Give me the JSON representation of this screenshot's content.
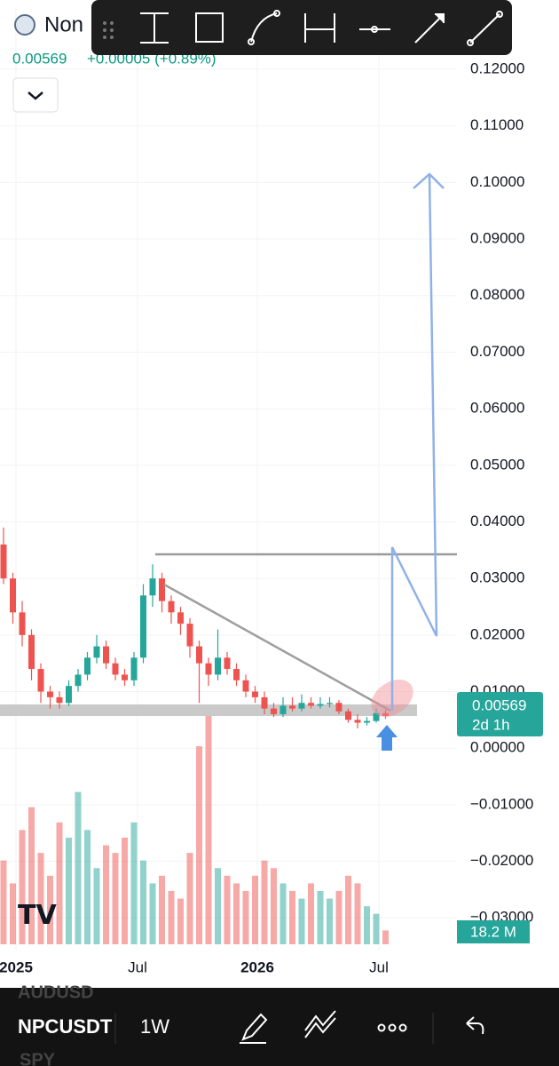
{
  "header": {
    "symbol": "Non",
    "price": "0.00569",
    "change": "+0.00005 (+0.89%)"
  },
  "chart": {
    "type": "candlestick",
    "yticks": [
      {
        "value": 0.12,
        "label": "0.12000"
      },
      {
        "value": 0.11,
        "label": "0.11000"
      },
      {
        "value": 0.1,
        "label": "0.10000"
      },
      {
        "value": 0.09,
        "label": "0.09000"
      },
      {
        "value": 0.08,
        "label": "0.08000"
      },
      {
        "value": 0.07,
        "label": "0.07000"
      },
      {
        "value": 0.06,
        "label": "0.06000"
      },
      {
        "value": 0.05,
        "label": "0.05000"
      },
      {
        "value": 0.04,
        "label": "0.04000"
      },
      {
        "value": 0.03,
        "label": "0.03000"
      },
      {
        "value": 0.02,
        "label": "0.02000"
      },
      {
        "value": 0.01,
        "label": "0.01000"
      },
      {
        "value": 0,
        "label": "0.00000"
      },
      {
        "value": -0.01,
        "label": "−0.01000"
      },
      {
        "value": -0.02,
        "label": "−0.02000"
      },
      {
        "value": -0.03,
        "label": "−0.03000"
      }
    ],
    "ylim": [
      -0.0375,
      0.131
    ],
    "x_labels": [
      "2025",
      "Jul",
      "2026",
      "Jul"
    ],
    "up_color": "#26a69a",
    "down_color": "#ef5350",
    "open": [
      0.036,
      0.03,
      0.024,
      0.02,
      0.014,
      0.01,
      0.009,
      0.008,
      0.011,
      0.013,
      0.016,
      0.018,
      0.015,
      0.013,
      0.012,
      0.016,
      0.027,
      0.03,
      0.026,
      0.024,
      0.022,
      0.018,
      0.015,
      0.013,
      0.016,
      0.014,
      0.012,
      0.01,
      0.009,
      0.007,
      0.006,
      0.0075,
      0.007,
      0.008,
      0.0075,
      0.0078,
      0.008,
      0.0065,
      0.005,
      0.0045,
      0.0048,
      0.0062
    ],
    "high": [
      0.039,
      0.031,
      0.026,
      0.021,
      0.015,
      0.011,
      0.01,
      0.012,
      0.014,
      0.017,
      0.02,
      0.019,
      0.016,
      0.014,
      0.017,
      0.029,
      0.0325,
      0.031,
      0.027,
      0.025,
      0.023,
      0.019,
      0.016,
      0.021,
      0.017,
      0.015,
      0.013,
      0.011,
      0.01,
      0.008,
      0.009,
      0.009,
      0.0095,
      0.009,
      0.009,
      0.009,
      0.0085,
      0.007,
      0.006,
      0.0055,
      0.007,
      0.0068
    ],
    "low": [
      0.029,
      0.022,
      0.018,
      0.012,
      0.008,
      0.007,
      0.007,
      0.0075,
      0.01,
      0.012,
      0.015,
      0.014,
      0.012,
      0.011,
      0.011,
      0.015,
      0.025,
      0.024,
      0.022,
      0.02,
      0.016,
      0.008,
      0.011,
      0.012,
      0.013,
      0.011,
      0.009,
      0.008,
      0.006,
      0.0055,
      0.0055,
      0.0065,
      0.0065,
      0.007,
      0.007,
      0.0072,
      0.006,
      0.0045,
      0.0035,
      0.004,
      0.0045,
      0.0052
    ],
    "close": [
      0.03,
      0.024,
      0.02,
      0.014,
      0.01,
      0.009,
      0.008,
      0.011,
      0.013,
      0.016,
      0.018,
      0.015,
      0.013,
      0.012,
      0.016,
      0.027,
      0.03,
      0.026,
      0.024,
      0.022,
      0.018,
      0.015,
      0.013,
      0.016,
      0.014,
      0.012,
      0.01,
      0.009,
      0.007,
      0.006,
      0.0075,
      0.007,
      0.008,
      0.0075,
      0.0078,
      0.008,
      0.0065,
      0.005,
      0.0045,
      0.0048,
      0.0062,
      0.00569
    ],
    "volume": [
      110,
      80,
      150,
      180,
      120,
      90,
      160,
      140,
      200,
      150,
      100,
      130,
      120,
      140,
      160,
      110,
      80,
      90,
      70,
      60,
      120,
      260,
      300,
      100,
      90,
      80,
      70,
      90,
      110,
      100,
      80,
      70,
      60,
      80,
      70,
      60,
      70,
      90,
      80,
      50,
      40,
      18.2
    ],
    "volume_lim": [
      0,
      330
    ],
    "price_tag": "0.00569",
    "countdown": "2d 1h",
    "volume_tag": "18.2 M"
  },
  "bottom_bar": {
    "symbol": "NPCUSDT",
    "interval": "1W",
    "above": "AUDUSD",
    "below": "SPY"
  }
}
